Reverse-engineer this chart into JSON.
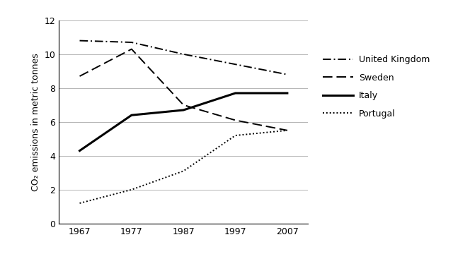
{
  "years": [
    1967,
    1977,
    1987,
    1997,
    2007
  ],
  "united_kingdom": [
    10.8,
    10.7,
    10.0,
    9.4,
    8.8
  ],
  "sweden": [
    8.7,
    10.3,
    7.0,
    6.1,
    5.5
  ],
  "italy": [
    4.3,
    6.4,
    6.7,
    7.7,
    7.7
  ],
  "portugal": [
    1.2,
    2.0,
    3.1,
    5.2,
    5.5
  ],
  "ylabel": "CO₂ emissions in metric tonnes",
  "ylim": [
    0,
    12
  ],
  "yticks": [
    0,
    2,
    4,
    6,
    8,
    10,
    12
  ],
  "xlim": [
    1963,
    2011
  ],
  "xticks": [
    1967,
    1977,
    1987,
    1997,
    2007
  ],
  "legend_labels": [
    "United Kingdom",
    "Sweden",
    "Italy",
    "Portugal"
  ],
  "background_color": "#ffffff",
  "line_color": "#000000",
  "grid_color": "#aaaaaa",
  "linewidth_uk": 1.4,
  "linewidth_sweden": 1.4,
  "linewidth_italy": 2.2,
  "linewidth_portugal": 1.4
}
